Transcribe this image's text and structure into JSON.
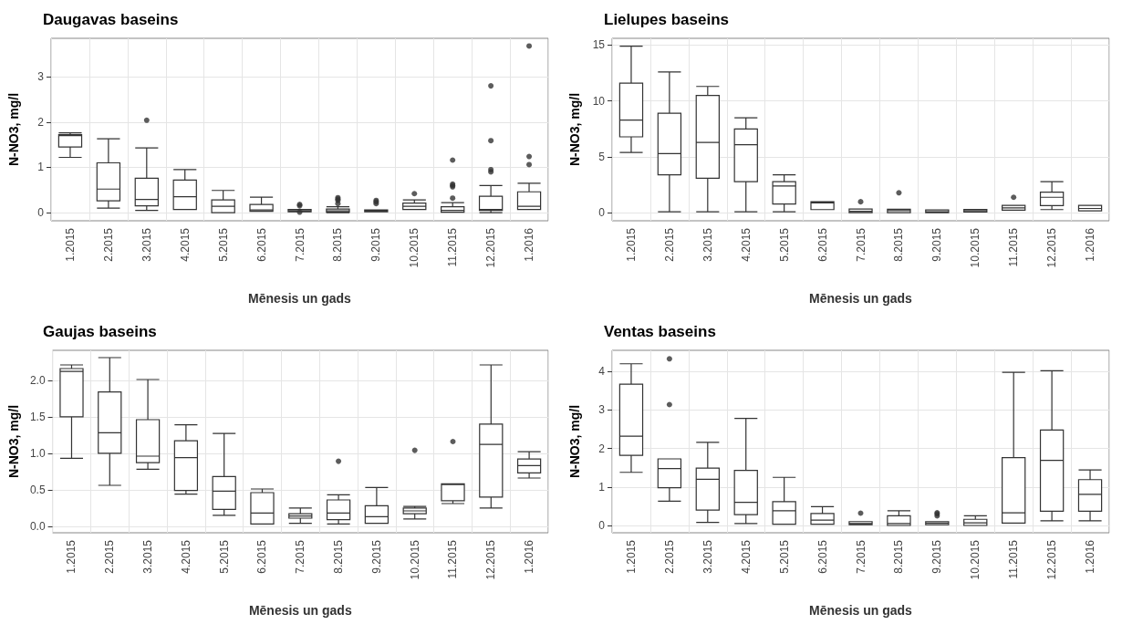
{
  "chart_data": [
    {
      "type": "box",
      "title": "Daugavas baseins",
      "xlabel": "Mēnesis un gads",
      "ylabel": "N-NO3, mg/l",
      "categories": [
        "1.2015",
        "2.2015",
        "3.2015",
        "4.2015",
        "5.2015",
        "6.2015",
        "7.2015",
        "8.2015",
        "9.2015",
        "10.2015",
        "11.2015",
        "12.2015",
        "1.2016"
      ],
      "ylim": [
        -0.18,
        3.85
      ],
      "yticks": [
        0,
        1,
        2,
        3
      ],
      "grid": true,
      "color": "#333333",
      "boxes": [
        {
          "low": 1.22,
          "q1": 1.45,
          "median": 1.7,
          "q3": 1.72,
          "high": 1.76
        },
        {
          "low": 0.1,
          "q1": 0.26,
          "median": 0.52,
          "q3": 1.1,
          "high": 1.63
        },
        {
          "low": 0.05,
          "q1": 0.15,
          "median": 0.29,
          "q3": 0.76,
          "high": 1.43,
          "outliers": [
            2.04
          ]
        },
        {
          "low": 0.07,
          "q1": 0.07,
          "median": 0.35,
          "q3": 0.72,
          "high": 0.95
        },
        {
          "low": 0,
          "q1": 0,
          "median": 0.14,
          "q3": 0.28,
          "high": 0.49
        },
        {
          "low": 0.03,
          "q1": 0.03,
          "median": 0.06,
          "q3": 0.18,
          "high": 0.34
        },
        {
          "low": 0.02,
          "q1": 0.02,
          "median": 0.04,
          "q3": 0.07,
          "high": 0.07,
          "outliers": [
            0.18,
            0.15,
            0.01
          ]
        },
        {
          "low": 0,
          "q1": 0.01,
          "median": 0.04,
          "q3": 0.08,
          "high": 0.13,
          "outliers": [
            0.2,
            0.27,
            0.3,
            0.33
          ]
        },
        {
          "low": 0.02,
          "q1": 0.02,
          "median": 0.04,
          "q3": 0.06,
          "high": 0.06,
          "outliers": [
            0.2,
            0.24,
            0.27
          ]
        },
        {
          "low": 0.07,
          "q1": 0.07,
          "median": 0.14,
          "q3": 0.21,
          "high": 0.28,
          "outliers": [
            0.42
          ]
        },
        {
          "low": 0.01,
          "q1": 0.01,
          "median": 0.05,
          "q3": 0.13,
          "high": 0.22,
          "outliers": [
            0.32,
            0.57,
            0.6,
            0.63,
            1.16
          ]
        },
        {
          "low": 0,
          "q1": 0.05,
          "median": 0.07,
          "q3": 0.36,
          "high": 0.6,
          "outliers": [
            0.9,
            0.95,
            1.59,
            2.8
          ]
        },
        {
          "low": 0.07,
          "q1": 0.07,
          "median": 0.14,
          "q3": 0.46,
          "high": 0.65,
          "outliers": [
            1.06,
            1.24,
            3.68
          ]
        }
      ]
    },
    {
      "type": "box",
      "title": "Lielupes baseins",
      "xlabel": "Mēnesis un gads",
      "ylabel": "N-NO3, mg/l",
      "categories": [
        "1.2015",
        "2.2015",
        "3.2015",
        "4.2015",
        "5.2015",
        "6.2015",
        "7.2015",
        "8.2015",
        "9.2015",
        "10.2015",
        "11.2015",
        "12.2015",
        "1.2016"
      ],
      "ylim": [
        -0.7,
        15.6
      ],
      "yticks": [
        0,
        5,
        10,
        15
      ],
      "grid": true,
      "color": "#333333",
      "boxes": [
        {
          "low": 5.4,
          "q1": 6.8,
          "median": 8.3,
          "q3": 11.6,
          "high": 14.9
        },
        {
          "low": 0.1,
          "q1": 3.4,
          "median": 5.3,
          "q3": 8.9,
          "high": 12.6
        },
        {
          "low": 0.1,
          "q1": 3.1,
          "median": 6.3,
          "q3": 10.5,
          "high": 11.3
        },
        {
          "low": 0.1,
          "q1": 2.8,
          "median": 6.1,
          "q3": 7.5,
          "high": 8.5
        },
        {
          "low": 0.1,
          "q1": 0.8,
          "median": 2.4,
          "q3": 2.8,
          "high": 3.4
        },
        {
          "low": 0.3,
          "q1": 0.3,
          "median": 0.9,
          "q3": 1,
          "high": 1
        },
        {
          "low": 0.03,
          "q1": 0.03,
          "median": 0.15,
          "q3": 0.35,
          "high": 0.35,
          "outliers": [
            1
          ]
        },
        {
          "low": 0.03,
          "q1": 0.03,
          "median": 0.2,
          "q3": 0.33,
          "high": 0.33,
          "outliers": [
            1.8
          ]
        },
        {
          "low": 0.03,
          "q1": 0.03,
          "median": 0.1,
          "q3": 0.27,
          "high": 0.27
        },
        {
          "low": 0.08,
          "q1": 0.08,
          "median": 0.2,
          "q3": 0.32,
          "high": 0.32
        },
        {
          "low": 0.25,
          "q1": 0.25,
          "median": 0.45,
          "q3": 0.68,
          "high": 0.68,
          "outliers": [
            1.4
          ]
        },
        {
          "low": 0.3,
          "q1": 0.65,
          "median": 1.4,
          "q3": 1.85,
          "high": 2.8
        },
        {
          "low": 0.18,
          "q1": 0.18,
          "median": 0.4,
          "q3": 0.68,
          "high": 0.68
        }
      ]
    },
    {
      "type": "box",
      "title": "Gaujas baseins",
      "xlabel": "Mēnesis un gads",
      "ylabel": "N-NO3, mg/l",
      "categories": [
        "1.2015",
        "2.2015",
        "3.2015",
        "4.2015",
        "5.2015",
        "6.2015",
        "7.2015",
        "8.2015",
        "9.2015",
        "10.2015",
        "11.2015",
        "12.2015",
        "1.2016"
      ],
      "ylim": [
        -0.09,
        2.41
      ],
      "yticks": [
        {
          "value": 0,
          "label": "0.0"
        },
        {
          "value": 0.5,
          "label": "0.5"
        },
        {
          "value": 1,
          "label": "1.0"
        },
        {
          "value": 1.5,
          "label": "1.5"
        },
        {
          "value": 2,
          "label": "2.0"
        }
      ],
      "grid": true,
      "color": "#333333",
      "boxes": [
        {
          "low": 0.93,
          "q1": 1.5,
          "median": 2.12,
          "q3": 2.16,
          "high": 2.21
        },
        {
          "low": 0.56,
          "q1": 1,
          "median": 1.28,
          "q3": 1.84,
          "high": 2.31
        },
        {
          "low": 0.78,
          "q1": 0.87,
          "median": 0.96,
          "q3": 1.46,
          "high": 2.01
        },
        {
          "low": 0.44,
          "q1": 0.49,
          "median": 0.94,
          "q3": 1.17,
          "high": 1.39
        },
        {
          "low": 0.15,
          "q1": 0.23,
          "median": 0.48,
          "q3": 0.68,
          "high": 1.27
        },
        {
          "low": 0.03,
          "q1": 0.03,
          "median": 0.18,
          "q3": 0.46,
          "high": 0.51
        },
        {
          "low": 0.04,
          "q1": 0.11,
          "median": 0.14,
          "q3": 0.17,
          "high": 0.25
        },
        {
          "low": 0.03,
          "q1": 0.09,
          "median": 0.18,
          "q3": 0.36,
          "high": 0.43,
          "outliers": [
            0.89
          ]
        },
        {
          "low": 0.04,
          "q1": 0.04,
          "median": 0.13,
          "q3": 0.28,
          "high": 0.53
        },
        {
          "low": 0.1,
          "q1": 0.17,
          "median": 0.21,
          "q3": 0.25,
          "high": 0.27,
          "outliers": [
            1.04
          ]
        },
        {
          "low": 0.31,
          "q1": 0.35,
          "median": 0.57,
          "q3": 0.58,
          "high": 0.58,
          "outliers": [
            1.16
          ]
        },
        {
          "low": 0.25,
          "q1": 0.4,
          "median": 1.12,
          "q3": 1.4,
          "high": 2.21
        },
        {
          "low": 0.66,
          "q1": 0.73,
          "median": 0.83,
          "q3": 0.92,
          "high": 1.02
        }
      ]
    },
    {
      "type": "box",
      "title": "Ventas baseins",
      "xlabel": "Mēnesis un gads",
      "ylabel": "N-NO3, mg/l",
      "categories": [
        "1.2015",
        "2.2015",
        "3.2015",
        "4.2015",
        "5.2015",
        "6.2015",
        "7.2015",
        "8.2015",
        "9.2015",
        "10.2015",
        "11.2015",
        "12.2015",
        "1.2016"
      ],
      "ylim": [
        -0.19,
        4.55
      ],
      "yticks": [
        0,
        1,
        2,
        3,
        4
      ],
      "grid": true,
      "color": "#333333",
      "boxes": [
        {
          "low": 1.38,
          "q1": 1.82,
          "median": 2.32,
          "q3": 3.67,
          "high": 4.2
        },
        {
          "low": 0.63,
          "q1": 0.98,
          "median": 1.48,
          "q3": 1.73,
          "high": 1.73,
          "outliers": [
            3.14,
            4.33
          ]
        },
        {
          "low": 0.08,
          "q1": 0.4,
          "median": 1.2,
          "q3": 1.49,
          "high": 2.16
        },
        {
          "low": 0.05,
          "q1": 0.28,
          "median": 0.6,
          "q3": 1.43,
          "high": 2.78
        },
        {
          "low": 0.03,
          "q1": 0.03,
          "median": 0.38,
          "q3": 0.62,
          "high": 1.25
        },
        {
          "low": 0.03,
          "q1": 0.03,
          "median": 0.14,
          "q3": 0.31,
          "high": 0.49
        },
        {
          "low": 0.02,
          "q1": 0.02,
          "median": 0.05,
          "q3": 0.1,
          "high": 0.1,
          "outliers": [
            0.32
          ]
        },
        {
          "low": 0,
          "q1": 0,
          "median": 0.05,
          "q3": 0.25,
          "high": 0.38
        },
        {
          "low": 0.02,
          "q1": 0.02,
          "median": 0.06,
          "q3": 0.1,
          "high": 0.1,
          "outliers": [
            0.25,
            0.3,
            0.33
          ]
        },
        {
          "low": 0,
          "q1": 0,
          "median": 0.07,
          "q3": 0.16,
          "high": 0.25
        },
        {
          "low": 0.06,
          "q1": 0.06,
          "median": 0.33,
          "q3": 1.76,
          "high": 3.98
        },
        {
          "low": 0.12,
          "q1": 0.37,
          "median": 1.69,
          "q3": 2.48,
          "high": 4.02
        },
        {
          "low": 0.12,
          "q1": 0.37,
          "median": 0.81,
          "q3": 1.19,
          "high": 1.44
        }
      ]
    }
  ]
}
